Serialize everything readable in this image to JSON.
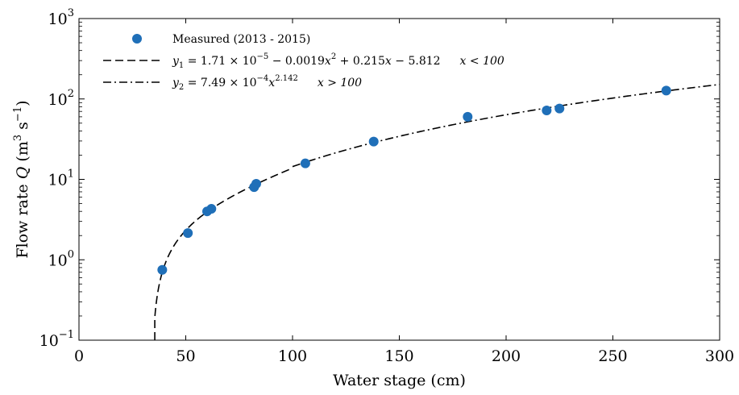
{
  "chart_data": {
    "type": "scatter",
    "xlabel": "Water stage (cm)",
    "ylabel_prefix": "Flow rate ",
    "ylabel_var": "Q",
    "ylabel_unit_open": " (m",
    "ylabel_unit_exp": "3",
    "ylabel_unit_mid": " s",
    "ylabel_unit_exp2": "−1",
    "ylabel_unit_close": ")",
    "xlim": [
      0,
      300
    ],
    "ylim": [
      0.1,
      1000
    ],
    "yscale": "log",
    "x_ticks": [
      "0",
      "50",
      "100",
      "150",
      "200",
      "250",
      "300"
    ],
    "y_ticks": [
      {
        "base": "10",
        "exp": "−1"
      },
      {
        "base": "10",
        "exp": "0"
      },
      {
        "base": "10",
        "exp": "1"
      },
      {
        "base": "10",
        "exp": "2"
      },
      {
        "base": "10",
        "exp": "3"
      }
    ],
    "y_tick_values": [
      0.1,
      1,
      10,
      100,
      1000
    ],
    "x_tick_values": [
      0,
      50,
      100,
      150,
      200,
      250,
      300
    ],
    "grid": false,
    "legend_position": "top-left",
    "series": [
      {
        "name": "Measured (2013 - 2015)",
        "kind": "points",
        "color": "#1f6fb8",
        "x": [
          39,
          51,
          60,
          62,
          82,
          83,
          106,
          138,
          182,
          219,
          225,
          275
        ],
        "y": [
          0.75,
          2.15,
          4.0,
          4.3,
          8.0,
          8.8,
          15.8,
          29.5,
          60.0,
          72.0,
          76.0,
          127.0
        ]
      },
      {
        "name_lhs": "y",
        "name_lhs_sub": "1",
        "name_rhs_a": " = 1.71 × 10",
        "name_rhs_a_exp": "−5",
        "name_rhs_b": " − 0.0019",
        "name_rhs_b_var": "x",
        "name_rhs_b_exp": "2",
        "name_rhs_c": " + 0.215",
        "name_rhs_c_var": "x",
        "name_rhs_d": " − 5.812",
        "name_cond": "x < 100",
        "kind": "dashed-line",
        "color": "#000000",
        "coefficients": [
          1.71e-05,
          -0.0019,
          0.215,
          -5.812
        ],
        "domain": [
          35.5,
          100
        ]
      },
      {
        "name_lhs": "y",
        "name_lhs_sub": "2",
        "name_rhs_a": " = 7.49 × 10",
        "name_rhs_a_exp": "−4",
        "name_rhs_b_var": "x",
        "name_rhs_b_exp": "2.142",
        "name_cond": "x > 100",
        "kind": "dashdot-line",
        "color": "#000000",
        "coefficient": 0.000749,
        "exponent": 2.142,
        "domain": [
          100,
          300
        ]
      }
    ]
  }
}
